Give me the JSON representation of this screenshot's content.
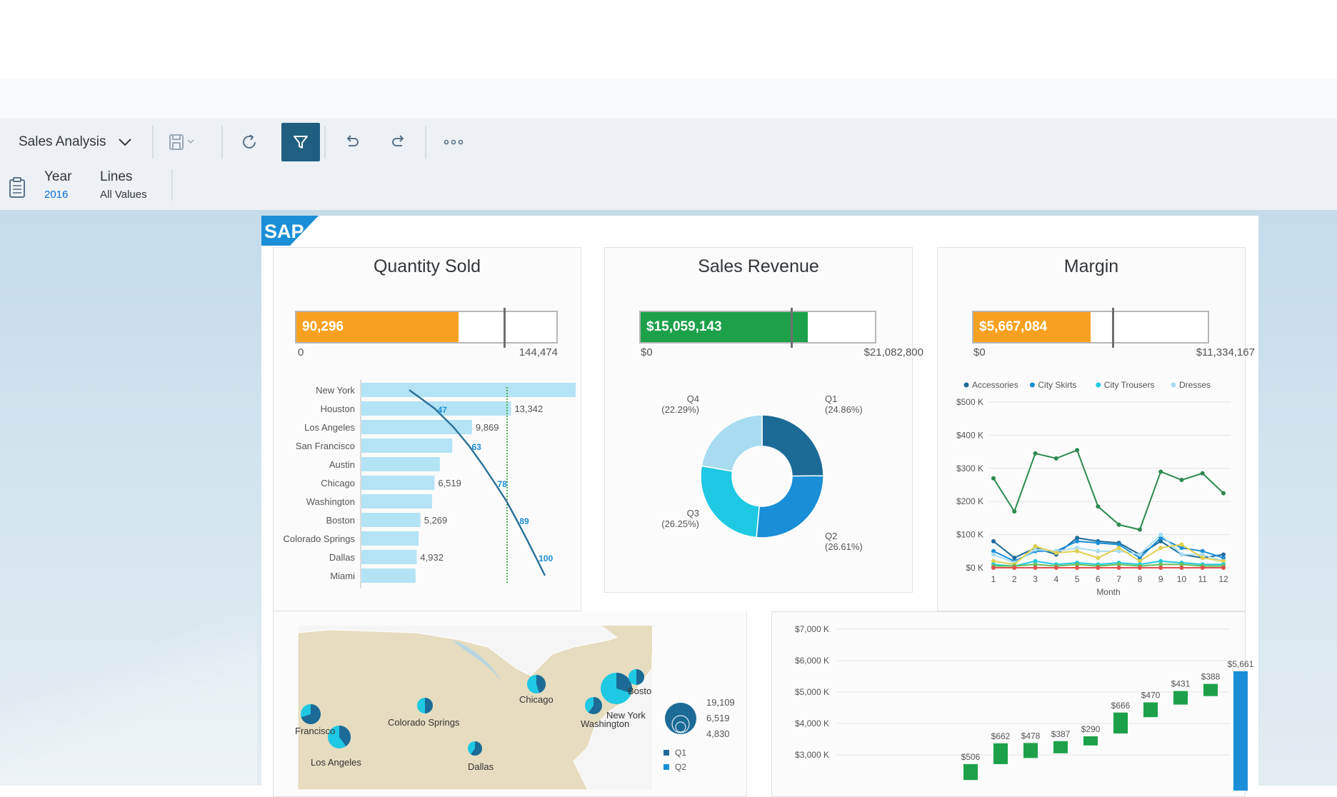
{
  "toolbar": {
    "story_title": "Sales Analysis",
    "icons": [
      "chevron-down-icon",
      "save-icon",
      "refresh-icon",
      "filter-icon",
      "undo-icon",
      "redo-icon",
      "more-icon"
    ]
  },
  "context": {
    "filters": [
      {
        "label": "Year",
        "value": "2016"
      },
      {
        "label": "Lines",
        "value": "All Values"
      }
    ]
  },
  "dashboard": {
    "logo": "SAP",
    "cards": {
      "quantity": {
        "title": "Quantity Sold",
        "value": "90,296",
        "min": "0",
        "max": "144,474",
        "color": "#f8a120"
      },
      "revenue": {
        "title": "Sales Revenue",
        "value": "$15,059,143",
        "min": "$0",
        "max": "$21,082,800",
        "color": "#1ca14a"
      },
      "margin": {
        "title": "Margin",
        "value": "$5,667,084",
        "min": "$0",
        "max": "$11,334,167",
        "color": "#f8a120"
      }
    }
  },
  "chart_data": [
    {
      "type": "bullet",
      "title": "Quantity Sold",
      "value": 90296,
      "target": 115000,
      "min": 0,
      "max": 144474
    },
    {
      "type": "bullet",
      "title": "Sales Revenue",
      "value": 15059143,
      "target": 13500000,
      "min": 0,
      "max": 21082800
    },
    {
      "type": "bullet",
      "title": "Margin",
      "value": 5667084,
      "target": 6700000,
      "min": 0,
      "max": 11334167
    },
    {
      "type": "bar",
      "orientation": "horizontal",
      "title": "",
      "categories": [
        "New York",
        "Houston",
        "Los Angeles",
        "San Francisco",
        "Austin",
        "Chicago",
        "Washington",
        "Boston",
        "Colorado Springs",
        "Dallas",
        "Miami"
      ],
      "values": [
        19109,
        13342,
        9869,
        8100,
        7000,
        6519,
        6300,
        5269,
        5100,
        4932,
        4830
      ],
      "data_labels": {
        "1": "13,342",
        "2": "9,869",
        "5": "6,519",
        "7": "5,269",
        "9": "4,932"
      },
      "pareto_labels": [
        "47",
        "63",
        "78",
        "89",
        "100"
      ],
      "pareto_line_color": "#2a6f97",
      "reference_line_color": "#4caf50"
    },
    {
      "type": "pie",
      "subtype": "donut",
      "title": "",
      "slices": [
        {
          "label": "Q1",
          "percent_label": "(24.86%)",
          "value": 24.86,
          "color": "#1c6b97"
        },
        {
          "label": "Q2",
          "percent_label": "(26.61%)",
          "value": 26.61,
          "color": "#1a8ed6"
        },
        {
          "label": "Q3",
          "percent_label": "(26.25%)",
          "value": 26.25,
          "color": "#1fc8e3"
        },
        {
          "label": "Q4",
          "percent_label": "(22.29%)",
          "value": 22.29,
          "color": "#a9dcf0"
        }
      ]
    },
    {
      "type": "line",
      "title": "",
      "xlabel": "Month",
      "x": [
        1,
        2,
        3,
        4,
        5,
        6,
        7,
        8,
        9,
        10,
        11,
        12
      ],
      "y_ticks": [
        "$0 K",
        "$100 K",
        "$200 K",
        "$300 K",
        "$400 K",
        "$500 K"
      ],
      "ylim": [
        0,
        500
      ],
      "legend": [
        "Accessories",
        "City Skirts",
        "City Trousers",
        "Dresses"
      ],
      "legend_colors": [
        "#1c6b97",
        "#1a8ed6",
        "#1fc8e3",
        "#a9dcf0"
      ],
      "legend_position": "top",
      "series": [
        {
          "values": [
            270,
            170,
            345,
            330,
            355,
            185,
            130,
            115,
            290,
            265,
            285,
            225
          ],
          "color": "#2c8a4f"
        },
        {
          "values": [
            80,
            30,
            60,
            40,
            90,
            80,
            75,
            40,
            80,
            40,
            30,
            40
          ],
          "color": "#1c6b97"
        },
        {
          "values": [
            50,
            20,
            50,
            50,
            80,
            75,
            70,
            30,
            90,
            60,
            50,
            30
          ],
          "color": "#1a8ed6"
        },
        {
          "values": [
            40,
            15,
            55,
            50,
            60,
            50,
            50,
            40,
            100,
            40,
            40,
            20
          ],
          "color": "#a9dcf0"
        },
        {
          "values": [
            20,
            10,
            65,
            45,
            50,
            30,
            60,
            20,
            60,
            70,
            30,
            20
          ],
          "color": "#e0d050"
        },
        {
          "values": [
            10,
            5,
            20,
            10,
            15,
            10,
            15,
            10,
            20,
            15,
            10,
            10
          ],
          "color": "#1fc8e3"
        },
        {
          "values": [
            5,
            5,
            10,
            5,
            10,
            5,
            10,
            5,
            10,
            10,
            5,
            5
          ],
          "color": "#6bbf59"
        },
        {
          "values": [
            0,
            0,
            0,
            0,
            0,
            0,
            0,
            0,
            0,
            0,
            0,
            0
          ],
          "color": "#e05050"
        }
      ]
    },
    {
      "type": "map",
      "title": "",
      "locations": [
        "Francisco",
        "Los Angeles",
        "Colorado Springs",
        "Chicago",
        "Washington",
        "New York",
        "Bosto",
        "Dallas"
      ],
      "size_legend": [
        "19,109",
        "6,519",
        "4,830"
      ],
      "series_legend": [
        {
          "label": "Q1",
          "color": "#1c6b97"
        },
        {
          "label": "Q2",
          "color": "#1a8ed6"
        }
      ]
    },
    {
      "type": "waterfall",
      "title": "",
      "y_ticks": [
        "$3,000 K",
        "$4,000 K",
        "$5,000 K",
        "$6,000 K",
        "$7,000 K"
      ],
      "ylim": [
        2400,
        7200
      ],
      "steps": [
        {
          "label": "$506",
          "start": 2200,
          "end": 2706
        },
        {
          "label": "$662",
          "start": 2706,
          "end": 3368
        },
        {
          "label": "$478",
          "start": 2900,
          "end": 3378
        },
        {
          "label": "$387",
          "start": 3050,
          "end": 3437
        },
        {
          "label": "$290",
          "start": 3300,
          "end": 3590
        },
        {
          "label": "$666",
          "start": 3680,
          "end": 4346
        },
        {
          "label": "$470",
          "start": 4200,
          "end": 4670
        },
        {
          "label": "$431",
          "start": 4600,
          "end": 5031
        },
        {
          "label": "$388",
          "start": 4870,
          "end": 5258
        }
      ],
      "total": {
        "label": "$5,661",
        "value": 5661
      },
      "step_color": "#1ca14a",
      "total_color": "#1a8ed6"
    }
  ]
}
